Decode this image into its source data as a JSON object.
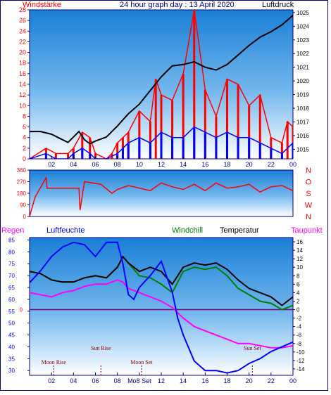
{
  "title": "24 hour graph day : 13 April 2020",
  "colors": {
    "wind": "#ff0000",
    "gust": "#0000ff",
    "pressure": "#000000",
    "direction": "#ff0000",
    "windchill": "#008000",
    "temperature": "#000000",
    "dewpoint": "#ff00ff",
    "humidity": "#0000ff",
    "rain": "#ff0000",
    "frame": "#000080",
    "tick": "#000080",
    "zero_line": "#800080",
    "panel_top": "#1a7fd6",
    "panel_bottom": "#ffffff"
  },
  "chart_data": [
    {
      "type": "line",
      "panel": "wind-pressure",
      "left_label": "Windstärke",
      "right_label": "Luftdruck",
      "x_ticks": [
        "02",
        "04",
        "06",
        "08",
        "10",
        "12",
        "14",
        "16",
        "18",
        "20",
        "22",
        "00"
      ],
      "y_left_ticks": [
        "0",
        "2",
        "4",
        "6",
        "8",
        "10",
        "12",
        "14",
        "16",
        "18",
        "20",
        "22",
        "24",
        "26",
        "28"
      ],
      "y_right_ticks": [
        "1015",
        "1016",
        "1017",
        "1018",
        "1019",
        "1020",
        "1021",
        "1022",
        "1023",
        "1024",
        "1025"
      ],
      "ylim_left": [
        0,
        28
      ],
      "ylim_right": [
        1014.3,
        1025.2
      ],
      "xlim": [
        0,
        24
      ],
      "series": [
        {
          "role": "pressure",
          "axis": "right",
          "x": [
            0,
            1,
            2,
            3,
            3.5,
            4,
            4.5,
            5,
            5.5,
            6,
            7,
            8,
            9,
            10,
            11,
            12,
            13,
            14,
            15,
            16,
            17,
            18,
            19,
            20,
            21,
            22,
            23,
            24
          ],
          "values": [
            1016.3,
            1016.3,
            1016.1,
            1015.7,
            1015.5,
            1015.9,
            1016.3,
            1015.7,
            1015.4,
            1015.6,
            1015.9,
            1016.7,
            1017.6,
            1018.3,
            1019.3,
            1020.3,
            1021.1,
            1021.2,
            1021.4,
            1021.0,
            1020.8,
            1021.2,
            1021.9,
            1022.6,
            1023.2,
            1023.6,
            1024.1,
            1024.8
          ]
        },
        {
          "role": "wind",
          "axis": "left",
          "x": [
            0,
            1.5,
            2.4,
            3.5,
            4,
            4.8,
            5.5,
            6,
            7,
            7.5,
            8,
            8.5,
            9,
            10,
            11,
            11.5,
            12,
            13,
            14,
            15,
            16,
            17,
            18,
            19,
            20,
            21,
            22,
            23,
            23.5,
            24
          ],
          "values": [
            0,
            2,
            1,
            1,
            2,
            5,
            4,
            1,
            0,
            1,
            3,
            4,
            5,
            9,
            7,
            15,
            12,
            11,
            16,
            28,
            13,
            8,
            15,
            14,
            10,
            12,
            4,
            3,
            7,
            6
          ]
        },
        {
          "role": "gust",
          "axis": "left",
          "x": [
            0,
            1.5,
            2.4,
            3.5,
            4,
            4.8,
            5.5,
            6,
            7,
            8,
            8.5,
            9,
            10,
            11,
            12,
            13,
            14,
            15,
            16,
            17,
            18,
            19,
            20,
            21,
            22,
            23,
            24
          ],
          "values": [
            0,
            1,
            0,
            0,
            1,
            2,
            1,
            0,
            0,
            1,
            2,
            3,
            4,
            3,
            5,
            4,
            4,
            6,
            5,
            4,
            5,
            4,
            4,
            3,
            2,
            1,
            3
          ]
        }
      ]
    },
    {
      "type": "line",
      "panel": "wind-direction",
      "y_left_ticks": [
        "0",
        "90",
        "180",
        "270",
        "360"
      ],
      "y_right_ticks": [
        "N",
        "W",
        "S",
        "O",
        "N"
      ],
      "ylim": [
        0,
        360
      ],
      "xlim": [
        0,
        24
      ],
      "series": [
        {
          "role": "direction",
          "x": [
            0,
            0.5,
            1.5,
            1.6,
            2.5,
            4.5,
            4.6,
            5,
            6.5,
            7.5,
            8,
            9,
            10,
            11,
            12,
            13,
            14,
            15,
            16,
            17,
            18,
            19,
            20,
            21,
            22,
            23,
            24
          ],
          "values": [
            0,
            150,
            300,
            220,
            220,
            220,
            50,
            270,
            250,
            180,
            210,
            240,
            220,
            200,
            260,
            230,
            210,
            250,
            200,
            260,
            220,
            230,
            250,
            190,
            230,
            240,
            200
          ]
        }
      ]
    },
    {
      "type": "line",
      "panel": "temperature-humidity",
      "legend": [
        "Regen",
        "Luftfeuchte",
        "Windchill",
        "Temperatur",
        "Taupunkt"
      ],
      "x_ticks": [
        "02",
        "04",
        "06",
        "08",
        "Mo",
        "12",
        "14",
        "16",
        "18",
        "20",
        "22",
        "00"
      ],
      "x_tick_overlay": "Mo8 Set",
      "y_left_ticks": [
        "30",
        "35",
        "40",
        "45",
        "50",
        "55",
        "60",
        "65",
        "70",
        "75",
        "80",
        "85"
      ],
      "y_right_ticks": [
        "-14",
        "-12",
        "-10",
        "-8",
        "-6",
        "-4",
        "-2",
        "0",
        "2",
        "4",
        "6",
        "8",
        "10",
        "12",
        "14",
        "16"
      ],
      "rain_value_label": "0",
      "ylim_left": [
        28,
        86
      ],
      "ylim_right": [
        -15.5,
        17
      ],
      "xlim": [
        0,
        24
      ],
      "astro_events": [
        {
          "label": "Moon Rise",
          "x": 2.2
        },
        {
          "label": "Sun Rise",
          "x": 6.5
        },
        {
          "label": "Moon Set",
          "x": 10.2
        },
        {
          "label": "Sun Set",
          "x": 20.3
        }
      ],
      "series": [
        {
          "role": "temperature",
          "axis": "right",
          "x": [
            0,
            1,
            2,
            3,
            4,
            5,
            6,
            7,
            8,
            8.5,
            9,
            10,
            11,
            12,
            13,
            14,
            15,
            16,
            17,
            18,
            19,
            20,
            21,
            22,
            23,
            24
          ],
          "values": [
            9,
            8.5,
            7,
            6.5,
            6.5,
            7.5,
            8,
            7.5,
            10,
            12.5,
            11,
            9,
            10,
            9,
            6,
            10,
            11,
            10.5,
            11,
            9.5,
            7,
            5,
            4,
            3,
            1,
            3
          ]
        },
        {
          "role": "windchill",
          "axis": "right",
          "x": [
            0,
            1,
            2,
            3,
            4,
            5,
            6,
            7,
            8,
            8.5,
            9,
            10,
            11,
            12,
            13,
            14,
            15,
            16,
            17,
            18,
            19,
            20,
            21,
            22,
            23,
            24
          ],
          "values": [
            9,
            8.5,
            7,
            6.5,
            6.5,
            7.5,
            8,
            7.5,
            10,
            12.5,
            11,
            8,
            7.5,
            6,
            4,
            9,
            10,
            9.5,
            10,
            8,
            5,
            3.5,
            2,
            1.5,
            0,
            1
          ]
        },
        {
          "role": "dewpoint",
          "axis": "right",
          "x": [
            0,
            1,
            2,
            3,
            4,
            5,
            6,
            7,
            8,
            8.5,
            9,
            10,
            11,
            12,
            13,
            14,
            15,
            16,
            17,
            18,
            19,
            20,
            21,
            22,
            23,
            24
          ],
          "values": [
            4,
            3.5,
            3,
            4,
            4.5,
            5.5,
            6,
            6,
            7,
            6.5,
            5,
            4,
            3,
            2,
            0.5,
            -2,
            -4,
            -5,
            -6,
            -7,
            -8,
            -8,
            -8.5,
            -9,
            -9,
            -8.5
          ]
        },
        {
          "role": "humidity",
          "axis": "left",
          "x": [
            0,
            1,
            2,
            3,
            4,
            5,
            6,
            7,
            8,
            8.5,
            9,
            9.5,
            10,
            11,
            12,
            13,
            13.5,
            14,
            15,
            16,
            17,
            18,
            19,
            20,
            21,
            22,
            23,
            24
          ],
          "values": [
            67,
            72,
            78,
            82,
            84,
            83,
            78,
            84,
            84,
            75,
            62,
            60,
            65,
            70,
            76,
            63,
            52,
            45,
            34,
            30,
            30,
            29,
            30,
            33,
            35,
            38,
            40,
            42
          ]
        }
      ]
    }
  ]
}
